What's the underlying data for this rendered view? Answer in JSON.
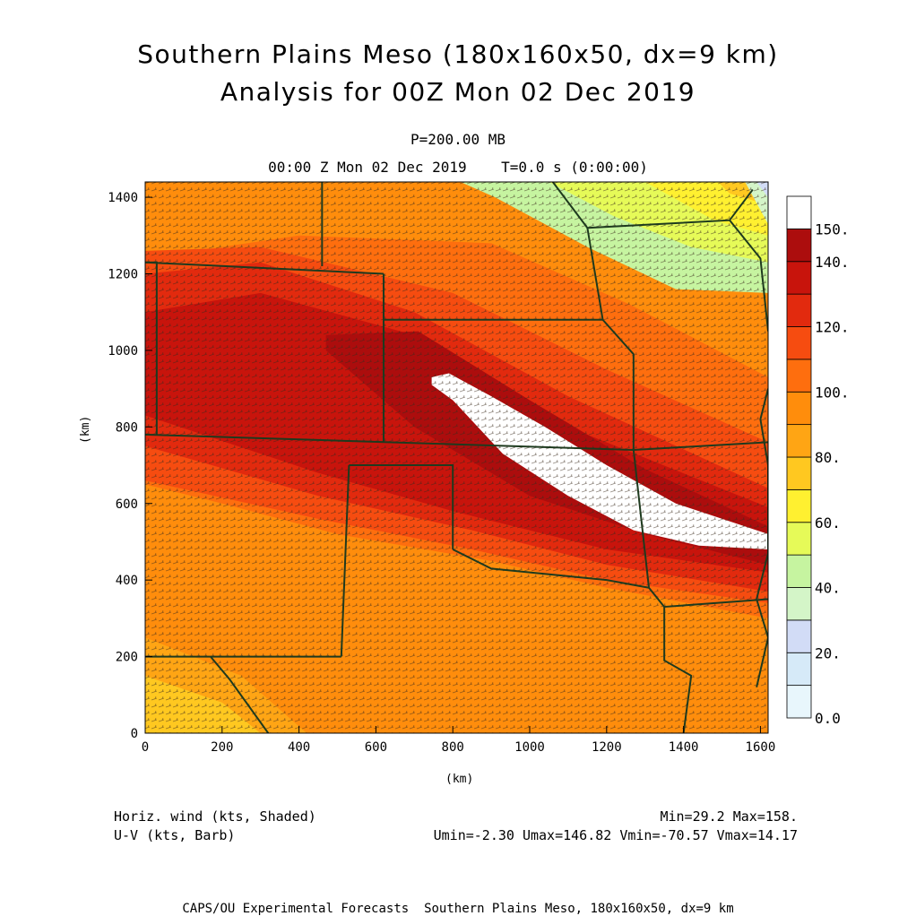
{
  "header": {
    "title1": "Southern Plains Meso (180x160x50, dx=9 km)",
    "title2": "Analysis for 00Z Mon 02 Dec 2019",
    "level": "P=200.00 MB",
    "time": "00:00 Z Mon 02 Dec 2019    T=0.0 s (0:00:00)"
  },
  "chart_data": {
    "type": "heatmap",
    "xlabel": "(km)",
    "ylabel": "(km)",
    "xlim": [
      0,
      1620
    ],
    "ylim": [
      0,
      1440
    ],
    "x_ticks": [
      "0",
      "200",
      "400",
      "600",
      "800",
      "1000",
      "1200",
      "1400",
      "1600"
    ],
    "y_ticks": [
      "0",
      "200",
      "400",
      "600",
      "800",
      "1000",
      "1200",
      "1400"
    ],
    "colorbar_labels": [
      "0.0",
      "20.",
      "40.",
      "60.",
      "80.",
      "100.",
      "120.",
      "140.",
      "150."
    ],
    "colorbar_levels": [
      0,
      10,
      20,
      30,
      40,
      50,
      60,
      70,
      80,
      90,
      100,
      110,
      120,
      130,
      140,
      150
    ],
    "colorbar_colors": [
      "#e8f6fc",
      "#d6eaf8",
      "#d2dcf6",
      "#d4f5c8",
      "#c6f4a0",
      "#e6fa58",
      "#fff030",
      "#ffc820",
      "#ffa514",
      "#ff8d0c",
      "#fe6e0e",
      "#f64c10",
      "#e22a0e",
      "#c8140c",
      "#ac0d0d",
      "#ffffff"
    ],
    "wind_core_knots": 158,
    "regions": [
      {
        "name": "shade-40-50",
        "level": 45,
        "points": [
          [
            1620,
            1440
          ],
          [
            1620,
            1150
          ],
          [
            1380,
            1160
          ],
          [
            1150,
            1270
          ],
          [
            910,
            1400
          ],
          [
            820,
            1440
          ]
        ]
      },
      {
        "name": "shade-50-60",
        "level": 55,
        "points": [
          [
            1620,
            1440
          ],
          [
            1620,
            1230
          ],
          [
            1420,
            1270
          ],
          [
            1220,
            1350
          ],
          [
            1050,
            1440
          ]
        ]
      },
      {
        "name": "shade-60-70",
        "level": 65,
        "points": [
          [
            1620,
            1440
          ],
          [
            1620,
            1300
          ],
          [
            1480,
            1340
          ],
          [
            1300,
            1440
          ]
        ]
      },
      {
        "name": "shade-70-80",
        "level": 75,
        "points": [
          [
            1620,
            1440
          ],
          [
            1620,
            1380
          ],
          [
            1520,
            1410
          ],
          [
            1490,
            1440
          ]
        ]
      },
      {
        "name": "shade-30-40",
        "level": 35,
        "points": [
          [
            1620,
            1440
          ],
          [
            1620,
            1330
          ],
          [
            1560,
            1440
          ]
        ]
      },
      {
        "name": "shade-20-30",
        "level": 25,
        "points": [
          [
            1620,
            1440
          ],
          [
            1620,
            1400
          ],
          [
            1590,
            1440
          ]
        ]
      },
      {
        "name": "shade-80-90-sw",
        "level": 85,
        "points": [
          [
            0,
            0
          ],
          [
            0,
            250
          ],
          [
            250,
            150
          ],
          [
            420,
            0
          ]
        ]
      },
      {
        "name": "shade-70-80-sw",
        "level": 75,
        "points": [
          [
            0,
            0
          ],
          [
            0,
            150
          ],
          [
            200,
            80
          ],
          [
            300,
            0
          ]
        ]
      },
      {
        "name": "shade-100-110-band",
        "level": 105,
        "points": [
          [
            0,
            1440
          ],
          [
            0,
            1240
          ],
          [
            400,
            1300
          ],
          [
            900,
            1280
          ],
          [
            1260,
            1120
          ],
          [
            1620,
            930
          ],
          [
            1620,
            300
          ],
          [
            1200,
            380
          ],
          [
            900,
            450
          ],
          [
            500,
            520
          ],
          [
            200,
            600
          ],
          [
            0,
            650
          ]
        ]
      },
      {
        "name": "shade-110-120-band",
        "level": 115,
        "points": [
          [
            0,
            1260
          ],
          [
            300,
            1270
          ],
          [
            800,
            1150
          ],
          [
            1200,
            950
          ],
          [
            1620,
            760
          ],
          [
            1620,
            340
          ],
          [
            1200,
            400
          ],
          [
            850,
            480
          ],
          [
            450,
            560
          ],
          [
            0,
            660
          ]
        ]
      },
      {
        "name": "shade-120-130-band",
        "level": 125,
        "points": [
          [
            0,
            1200
          ],
          [
            300,
            1230
          ],
          [
            700,
            1100
          ],
          [
            1100,
            880
          ],
          [
            1620,
            640
          ],
          [
            1620,
            370
          ],
          [
            1200,
            440
          ],
          [
            850,
            530
          ],
          [
            450,
            620
          ],
          [
            0,
            750
          ]
        ]
      },
      {
        "name": "shade-130-140-band",
        "level": 135,
        "points": [
          [
            0,
            1100
          ],
          [
            300,
            1150
          ],
          [
            700,
            1040
          ],
          [
            1100,
            800
          ],
          [
            1620,
            590
          ],
          [
            1620,
            420
          ],
          [
            1200,
            480
          ],
          [
            800,
            580
          ],
          [
            450,
            680
          ],
          [
            0,
            830
          ]
        ]
      },
      {
        "name": "shade-140-150-band",
        "level": 145,
        "points": [
          [
            470,
            1040
          ],
          [
            710,
            1050
          ],
          [
            1000,
            870
          ],
          [
            1300,
            690
          ],
          [
            1620,
            540
          ],
          [
            1620,
            440
          ],
          [
            1300,
            520
          ],
          [
            1000,
            620
          ],
          [
            700,
            800
          ],
          [
            470,
            1000
          ]
        ]
      },
      {
        "name": "shade-150-core",
        "level": 155,
        "points": [
          [
            745,
            930
          ],
          [
            790,
            940
          ],
          [
            900,
            880
          ],
          [
            1040,
            800
          ],
          [
            1200,
            700
          ],
          [
            1380,
            600
          ],
          [
            1620,
            520
          ],
          [
            1620,
            480
          ],
          [
            1440,
            490
          ],
          [
            1270,
            530
          ],
          [
            1100,
            620
          ],
          [
            930,
            730
          ],
          [
            800,
            870
          ],
          [
            745,
            910
          ]
        ]
      }
    ],
    "boundaries": [
      {
        "name": "colorado-north",
        "points": [
          [
            0,
            1230
          ],
          [
            620,
            1200
          ]
        ]
      },
      {
        "name": "colorado-east",
        "points": [
          [
            620,
            1200
          ],
          [
            620,
            760
          ]
        ]
      },
      {
        "name": "nebraska-south",
        "points": [
          [
            620,
            1080
          ],
          [
            1190,
            1080
          ]
        ]
      },
      {
        "name": "nebraska-north",
        "points": [
          [
            460,
            1440
          ],
          [
            460,
            1220
          ]
        ]
      },
      {
        "name": "kansas-south",
        "points": [
          [
            0,
            780
          ],
          [
            1270,
            740
          ]
        ]
      },
      {
        "name": "oklahoma-panhandle",
        "points": [
          [
            530,
            700
          ],
          [
            800,
            700
          ],
          [
            800,
            480
          ]
        ]
      },
      {
        "name": "oklahoma-red-river",
        "points": [
          [
            800,
            480
          ],
          [
            900,
            430
          ],
          [
            1000,
            420
          ],
          [
            1100,
            410
          ],
          [
            1200,
            400
          ],
          [
            1310,
            380
          ]
        ]
      },
      {
        "name": "missouri-west",
        "points": [
          [
            1190,
            1080
          ],
          [
            1270,
            990
          ],
          [
            1270,
            740
          ],
          [
            1310,
            380
          ]
        ]
      },
      {
        "name": "nm-east",
        "points": [
          [
            530,
            700
          ],
          [
            510,
            200
          ]
        ]
      },
      {
        "name": "texas-south",
        "points": [
          [
            0,
            200
          ],
          [
            170,
            200
          ],
          [
            510,
            200
          ]
        ]
      },
      {
        "name": "rio-grande",
        "points": [
          [
            170,
            200
          ],
          [
            220,
            140
          ],
          [
            320,
            0
          ]
        ]
      },
      {
        "name": "arkansas-south",
        "points": [
          [
            1350,
            330
          ],
          [
            1620,
            350
          ]
        ]
      },
      {
        "name": "arkansas-west",
        "points": [
          [
            1310,
            380
          ],
          [
            1350,
            330
          ],
          [
            1350,
            190
          ],
          [
            1420,
            150
          ],
          [
            1400,
            0
          ]
        ]
      },
      {
        "name": "mississippi-river",
        "points": [
          [
            1620,
            900
          ],
          [
            1600,
            820
          ],
          [
            1620,
            700
          ],
          [
            1620,
            470
          ],
          [
            1590,
            350
          ],
          [
            1620,
            250
          ],
          [
            1590,
            120
          ]
        ]
      },
      {
        "name": "iowa-south",
        "points": [
          [
            1150,
            1320
          ],
          [
            1520,
            1340
          ],
          [
            1580,
            1420
          ]
        ]
      },
      {
        "name": "iowa-west",
        "points": [
          [
            1060,
            1440
          ],
          [
            1150,
            1320
          ],
          [
            1190,
            1080
          ]
        ]
      },
      {
        "name": "illinois-west",
        "points": [
          [
            1520,
            1340
          ],
          [
            1600,
            1240
          ],
          [
            1620,
            1050
          ]
        ]
      },
      {
        "name": "missouri-arkansas",
        "points": [
          [
            1270,
            740
          ],
          [
            1620,
            760
          ]
        ]
      },
      {
        "name": "wyoming-colorado",
        "points": [
          [
            0,
            1230
          ],
          [
            30,
            1230
          ],
          [
            30,
            780
          ]
        ]
      }
    ]
  },
  "footer": {
    "left1": "Horiz. wind (kts, Shaded)",
    "left2": "U-V (kts, Barb)",
    "right1": "Min=29.2 Max=158.",
    "right2": "Umin=-2.30 Umax=146.82 Vmin=-70.57 Vmax=14.17",
    "credit": "CAPS/OU Experimental Forecasts  Southern Plains Meso, 180x160x50, dx=9 km"
  }
}
